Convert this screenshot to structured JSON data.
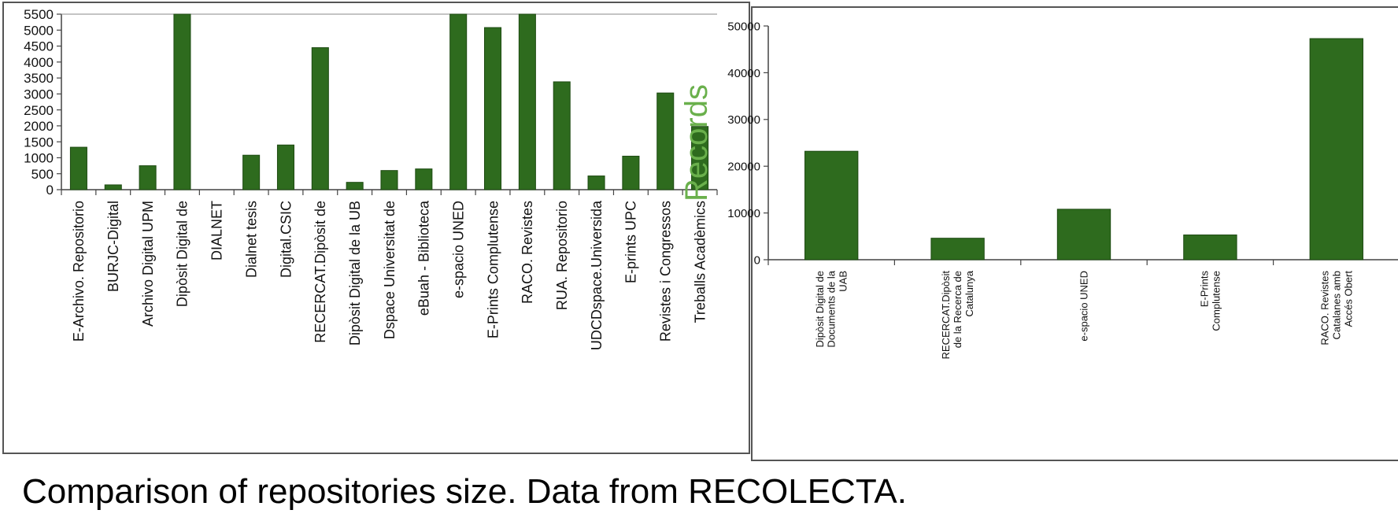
{
  "caption": "Comparison of repositories size. Data from RECOLECTA.",
  "colors": {
    "bar": "#2e6b1e",
    "bar_edge": "#1d4a12",
    "ylabel": "#6ab04c",
    "axis": "#444444"
  },
  "chart_data": [
    {
      "type": "bar",
      "title": "",
      "xlabel": "",
      "ylabel": "",
      "ylim": [
        0,
        5500
      ],
      "yticks": [
        0,
        500,
        1000,
        1500,
        2000,
        2500,
        3000,
        3500,
        4000,
        4500,
        5000,
        5500
      ],
      "grid": false,
      "categories": [
        "E-Archivo. Repositorio",
        "BURJC-Digital",
        "Archivo Digital UPM",
        "Dipòsit Digital de",
        "DIALNET",
        "Dialnet tesis",
        "Digital.CSIC",
        "RECERCAT.Dipòsit de",
        "Dipòsit Digital de la UB",
        "Dspace Universitat de",
        "eBuah - Biblioteca",
        "e-spacio UNED",
        "E-Prints Complutense",
        "RACO. Revistes",
        "RUA. Repositorio",
        "UDCDspace.Universida",
        "E-prints UPC",
        "Revistes i Congressos",
        "Treballs Acadèmics"
      ],
      "values": [
        1330,
        150,
        750,
        5600,
        0,
        1080,
        1400,
        4450,
        230,
        600,
        650,
        5600,
        5080,
        5600,
        3380,
        430,
        1050,
        3030,
        1980
      ]
    },
    {
      "type": "bar",
      "title": "",
      "xlabel": "",
      "ylabel": "Records",
      "ylim": [
        0,
        50000
      ],
      "yticks": [
        0,
        10000,
        20000,
        30000,
        40000,
        50000
      ],
      "grid": false,
      "categories": [
        [
          "Dipòsit Digital de",
          "Documents de la",
          "UAB"
        ],
        [
          "RECERCAT.Dipòsit",
          "de la Recerca de",
          "Catalunya"
        ],
        [
          "e-spacio UNED"
        ],
        [
          "E-Prints",
          "Complutense"
        ],
        [
          "RACO. Revistes",
          "Catalanes amb",
          "Accés Obert"
        ]
      ],
      "values": [
        23200,
        4600,
        10800,
        5300,
        47300
      ]
    }
  ]
}
